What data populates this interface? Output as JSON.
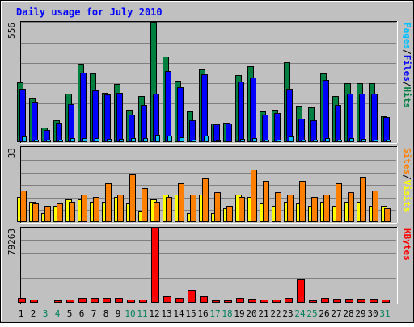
{
  "title": "Daily usage for July 2010",
  "colors": {
    "background": "#c0c0c0",
    "title": "#0000ff",
    "hits": "#008040",
    "files": "#0000ff",
    "pages": "#00c0ff",
    "visits": "#ffff00",
    "sites": "#ff8000",
    "kbytes": "#ff0000",
    "weekday_day": "#000000",
    "weekend_day": "#00805c"
  },
  "chart_data": [
    {
      "type": "bar",
      "name": "hits-files-pages",
      "categories": [
        "1",
        "2",
        "3",
        "4",
        "5",
        "6",
        "7",
        "8",
        "9",
        "10",
        "11",
        "12",
        "13",
        "14",
        "15",
        "16",
        "17",
        "18",
        "19",
        "20",
        "21",
        "22",
        "23",
        "24",
        "25",
        "26",
        "27",
        "28",
        "29",
        "30",
        "31"
      ],
      "ymax_label": "556",
      "ylim": [
        0,
        556
      ],
      "legend": [
        "Pages",
        "/",
        "Files",
        "/",
        "Hits"
      ],
      "legend_position": "right",
      "series": [
        {
          "name": "Hits",
          "values": [
            277,
            205,
            67,
            99,
            224,
            361,
            317,
            227,
            270,
            149,
            214,
            556,
            396,
            283,
            140,
            334,
            84,
            89,
            308,
            352,
            141,
            149,
            370,
            167,
            160,
            319,
            213,
            272,
            274,
            271,
            119
          ]
        },
        {
          "name": "Files",
          "values": [
            248,
            187,
            56,
            89,
            177,
            322,
            239,
            219,
            227,
            127,
            172,
            225,
            329,
            254,
            101,
            313,
            83,
            86,
            281,
            299,
            126,
            136,
            248,
            107,
            102,
            289,
            170,
            225,
            225,
            225,
            115
          ]
        },
        {
          "name": "Pages",
          "values": [
            25,
            12,
            12,
            12,
            17,
            20,
            17,
            15,
            15,
            17,
            17,
            32,
            30,
            24,
            12,
            29,
            7,
            5,
            15,
            20,
            12,
            12,
            25,
            12,
            12,
            17,
            12,
            20,
            15,
            12,
            10
          ]
        }
      ]
    },
    {
      "type": "bar",
      "name": "visits-sites",
      "categories": [
        "1",
        "2",
        "3",
        "4",
        "5",
        "6",
        "7",
        "8",
        "9",
        "10",
        "11",
        "12",
        "13",
        "14",
        "15",
        "16",
        "17",
        "18",
        "19",
        "20",
        "21",
        "22",
        "23",
        "24",
        "25",
        "26",
        "27",
        "28",
        "29",
        "30",
        "31"
      ],
      "ymax_label": "33",
      "ylim": [
        0,
        33
      ],
      "legend": [
        "Sites",
        "/",
        "Visits"
      ],
      "legend_position": "right",
      "series": [
        {
          "name": "Visits",
          "values": [
            11,
            9,
            4,
            7,
            10,
            10,
            9,
            9,
            11,
            8,
            5,
            10,
            12,
            12,
            4,
            12,
            4,
            6,
            12,
            11,
            8,
            7,
            9,
            8,
            7,
            9,
            7,
            9,
            9,
            7,
            7
          ]
        },
        {
          "name": "Sites",
          "values": [
            14,
            8,
            7,
            8,
            9,
            12,
            11,
            17,
            12,
            21,
            15,
            9,
            11,
            17,
            12,
            19,
            13,
            7,
            11,
            23,
            18,
            13,
            12,
            18,
            11,
            12,
            17,
            13,
            20,
            14,
            6
          ]
        }
      ]
    },
    {
      "type": "bar",
      "name": "kbytes",
      "categories": [
        "1",
        "2",
        "3",
        "4",
        "5",
        "6",
        "7",
        "8",
        "9",
        "10",
        "11",
        "12",
        "13",
        "14",
        "15",
        "16",
        "17",
        "18",
        "19",
        "20",
        "21",
        "22",
        "23",
        "24",
        "25",
        "26",
        "27",
        "28",
        "29",
        "30",
        "31"
      ],
      "ymax_label": "79263",
      "ylim": [
        0,
        79263
      ],
      "legend": [
        "KBytes"
      ],
      "legend_position": "right",
      "series": [
        {
          "name": "KBytes",
          "values": [
            5500,
            3200,
            1200,
            2600,
            3600,
            5500,
            5500,
            4800,
            4800,
            3000,
            3600,
            79263,
            6400,
            5500,
            14000,
            6400,
            2600,
            2600,
            5500,
            4100,
            3600,
            3600,
            5500,
            25000,
            2600,
            5500,
            4100,
            4100,
            4100,
            4100,
            3600
          ]
        }
      ]
    }
  ],
  "day_labels": [
    "1",
    "2",
    "3",
    "4",
    "5",
    "6",
    "7",
    "8",
    "9",
    "10",
    "11",
    "12",
    "13",
    "14",
    "15",
    "16",
    "17",
    "18",
    "19",
    "20",
    "21",
    "22",
    "23",
    "24",
    "25",
    "26",
    "27",
    "28",
    "29",
    "30",
    "31"
  ],
  "weekend_days": [
    "3",
    "4",
    "10",
    "11",
    "17",
    "18",
    "24",
    "25",
    "31"
  ]
}
